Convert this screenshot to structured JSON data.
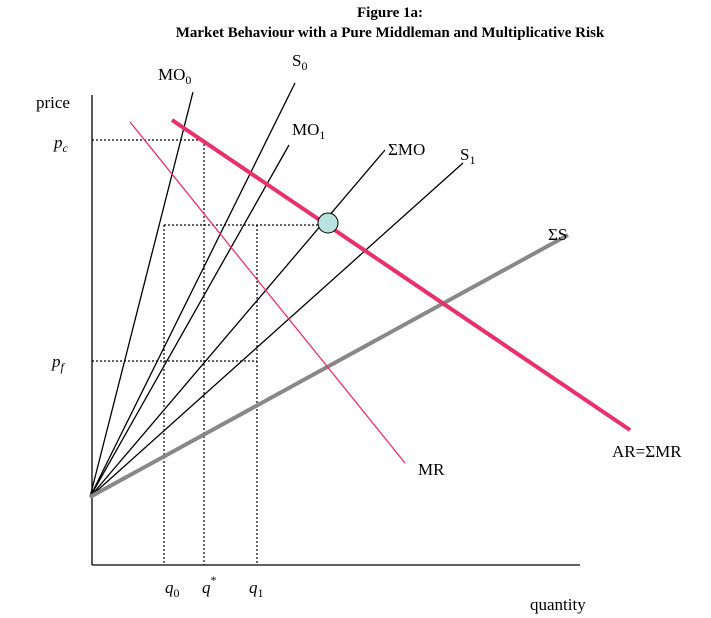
{
  "title": "Figure 1a:",
  "subtitle": "Market Behaviour with a Pure Middleman and Multiplicative Risk",
  "axes": {
    "y": "price",
    "x": "quantity"
  },
  "prices": [
    {
      "base": "p",
      "sub": "c"
    },
    {
      "base": "p",
      "sub": "f"
    }
  ],
  "quantities": [
    {
      "base": "q",
      "sub": "0"
    },
    {
      "base": "q",
      "sup": "*"
    },
    {
      "base": "q",
      "sub": "1"
    }
  ],
  "curves": [
    {
      "base": "MO",
      "sub": "0"
    },
    {
      "base": "S",
      "sub": "0"
    },
    {
      "base": "MO",
      "sub": "1"
    },
    {
      "label": "ΣMO"
    },
    {
      "base": "S",
      "sub": "1"
    },
    {
      "label": "ΣS"
    },
    {
      "label": "AR=ΣMR"
    },
    {
      "label": "MR"
    }
  ]
}
